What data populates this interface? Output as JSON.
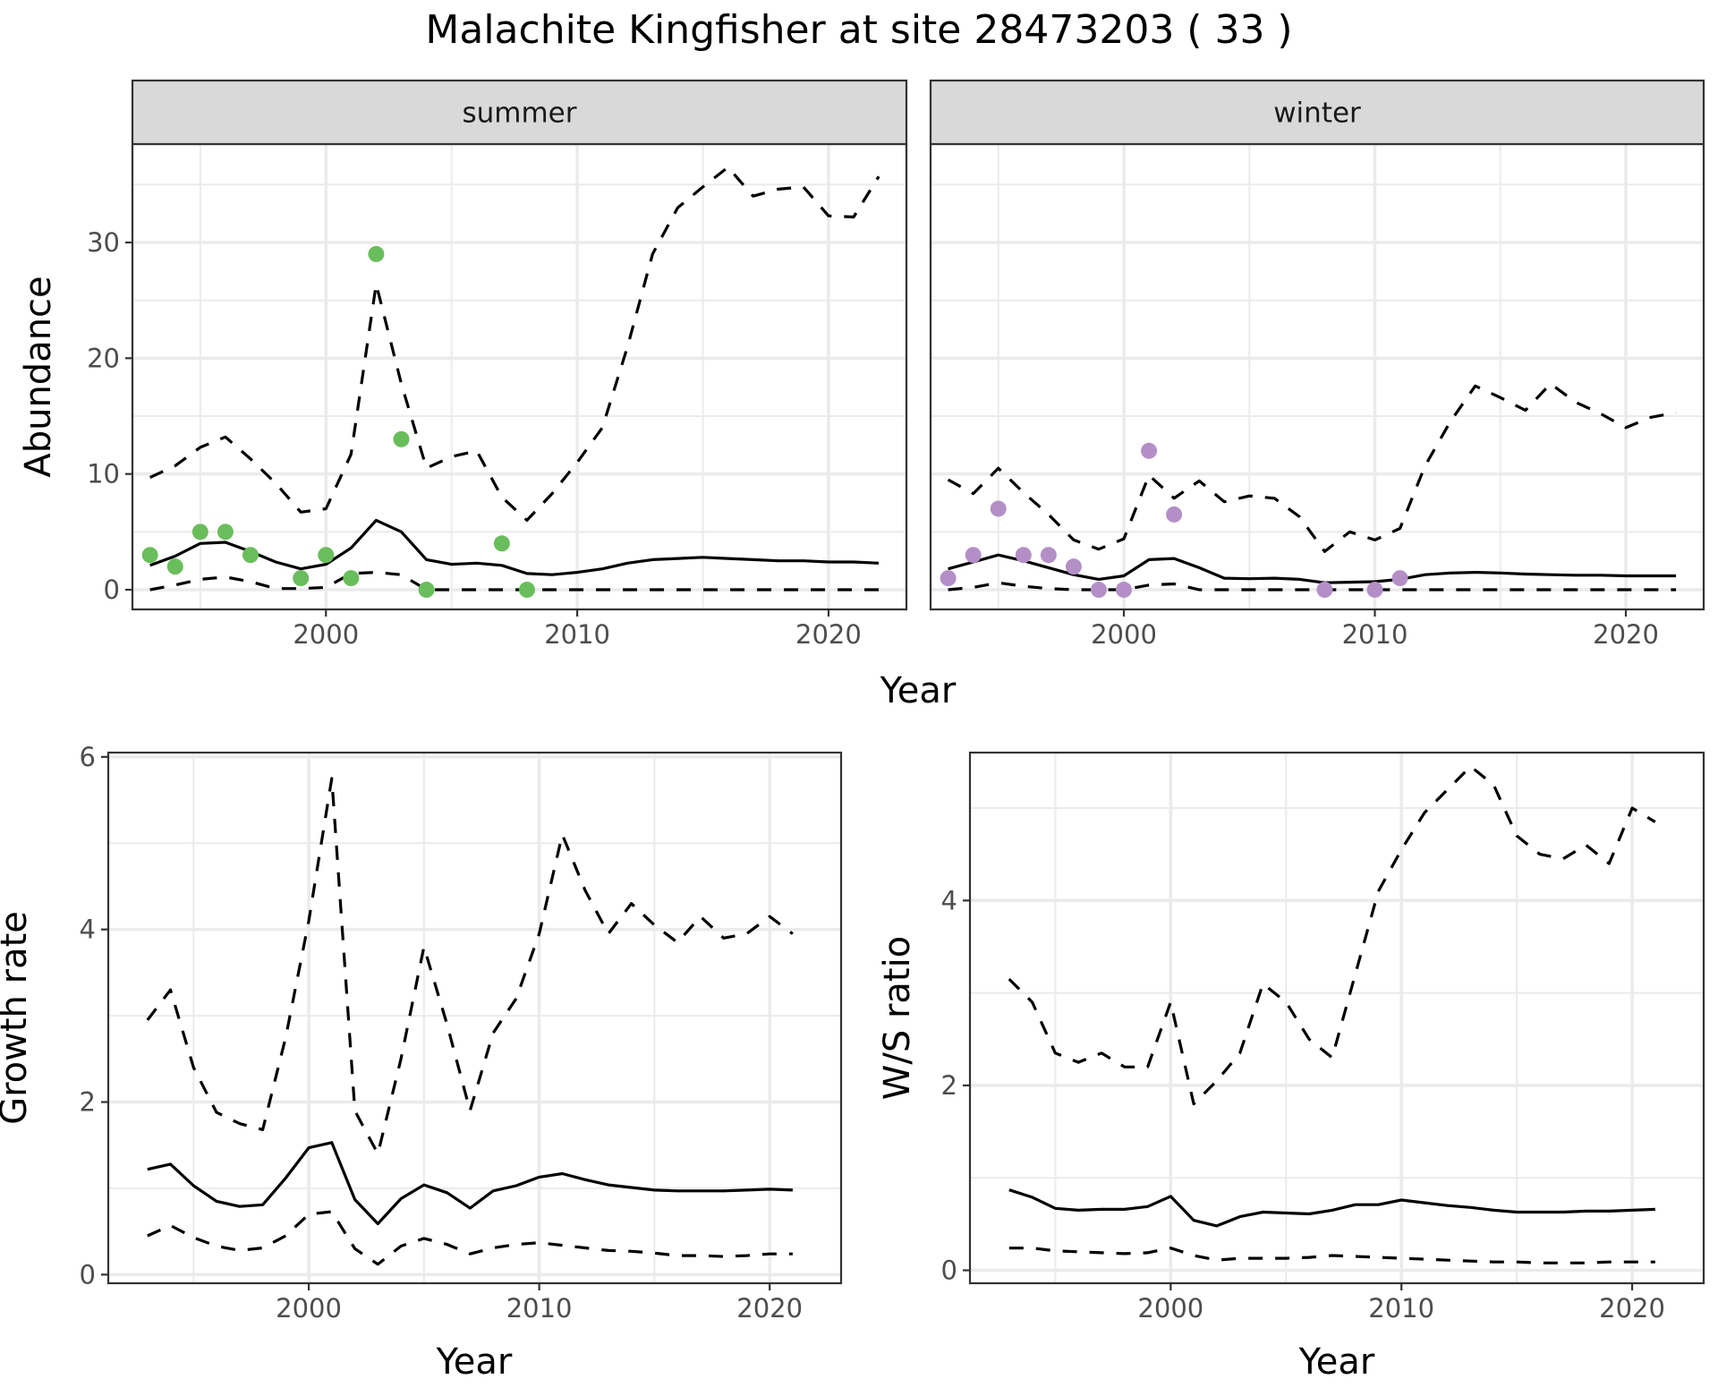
{
  "title": "Malachite Kingfisher at site 28473203 ( 33 )",
  "chart_data": [
    {
      "id": "abundance-summer",
      "type": "line",
      "facet": "summer",
      "xlabel": "Year",
      "ylabel": "Abundance",
      "xlim": [
        1992.3,
        2023.1
      ],
      "ylim": [
        -1.7,
        38.5
      ],
      "xticks": [
        2000,
        2010,
        2020
      ],
      "yticks": [
        0,
        10,
        20,
        30
      ],
      "grid": true,
      "series": [
        {
          "name": "fit",
          "style": "solid",
          "x": [
            1993,
            1994,
            1995,
            1996,
            1997,
            1998,
            1999,
            2000,
            2001,
            2002,
            2003,
            2004,
            2005,
            2006,
            2007,
            2008,
            2009,
            2010,
            2011,
            2012,
            2013,
            2014,
            2015,
            2016,
            2017,
            2018,
            2019,
            2020,
            2021,
            2022
          ],
          "y": [
            2.1,
            2.9,
            4.0,
            4.1,
            3.3,
            2.4,
            1.8,
            2.2,
            3.6,
            6.0,
            5.0,
            2.6,
            2.2,
            2.3,
            2.1,
            1.4,
            1.3,
            1.5,
            1.8,
            2.3,
            2.6,
            2.7,
            2.8,
            2.7,
            2.6,
            2.5,
            2.5,
            2.4,
            2.4,
            2.3
          ]
        },
        {
          "name": "upper",
          "style": "dashed",
          "x": [
            1993,
            1994,
            1995,
            1996,
            1997,
            1998,
            1999,
            2000,
            2001,
            2002,
            2003,
            2004,
            2005,
            2006,
            2007,
            2008,
            2009,
            2010,
            2011,
            2012,
            2013,
            2014,
            2015,
            2016,
            2017,
            2018,
            2019,
            2020,
            2021,
            2022
          ],
          "y": [
            9.7,
            10.7,
            12.3,
            13.2,
            11.3,
            9.2,
            6.7,
            7.0,
            11.7,
            26.4,
            17.8,
            10.5,
            11.5,
            12.0,
            8.0,
            6.0,
            8.3,
            11.0,
            14.0,
            21.0,
            29.0,
            33.0,
            34.8,
            36.5,
            34.0,
            34.6,
            34.8,
            32.3,
            32.2,
            35.7
          ]
        },
        {
          "name": "lower",
          "style": "dashed",
          "x": [
            1993,
            1994,
            1995,
            1996,
            1997,
            1998,
            1999,
            2000,
            2001,
            2002,
            2003,
            2004,
            2005,
            2006,
            2007,
            2008,
            2009,
            2010,
            2011,
            2012,
            2013,
            2014,
            2015,
            2016,
            2017,
            2018,
            2019,
            2020,
            2021,
            2022
          ],
          "y": [
            0,
            0.4,
            0.9,
            1.1,
            0.7,
            0.1,
            0.1,
            0.2,
            1.4,
            1.5,
            1.3,
            0,
            0,
            0,
            0,
            0,
            0,
            0,
            0,
            0,
            0,
            0,
            0,
            0,
            0,
            0,
            0,
            0,
            0,
            0
          ]
        },
        {
          "name": "observed",
          "style": "points",
          "color": "#6abd5c",
          "x": [
            1993,
            1994,
            1995,
            1996,
            1997,
            1999,
            2000,
            2001,
            2002,
            2003,
            2004,
            2007,
            2008
          ],
          "y": [
            3,
            2,
            5,
            5,
            3,
            1,
            3,
            1,
            29,
            13,
            0,
            4,
            0
          ]
        }
      ]
    },
    {
      "id": "abundance-winter",
      "type": "line",
      "facet": "winter",
      "xlabel": "Year",
      "ylabel": "Abundance",
      "xlim": [
        1992.3,
        2023.1
      ],
      "ylim": [
        -1.7,
        38.5
      ],
      "xticks": [
        2000,
        2010,
        2020
      ],
      "yticks": [
        0,
        10,
        20,
        30
      ],
      "grid": true,
      "series": [
        {
          "name": "fit",
          "style": "solid",
          "x": [
            1993,
            1994,
            1995,
            1996,
            1997,
            1998,
            1999,
            2000,
            2001,
            2002,
            2003,
            2004,
            2005,
            2006,
            2007,
            2008,
            2009,
            2010,
            2011,
            2012,
            2013,
            2014,
            2015,
            2016,
            2017,
            2018,
            2019,
            2020,
            2021,
            2022
          ],
          "y": [
            1.8,
            2.4,
            3.0,
            2.5,
            1.9,
            1.3,
            0.9,
            1.2,
            2.6,
            2.7,
            1.9,
            1.0,
            0.95,
            1.0,
            0.9,
            0.6,
            0.65,
            0.7,
            0.9,
            1.3,
            1.45,
            1.5,
            1.45,
            1.35,
            1.3,
            1.25,
            1.25,
            1.2,
            1.2,
            1.2
          ]
        },
        {
          "name": "upper",
          "style": "dashed",
          "x": [
            1993,
            1994,
            1995,
            1996,
            1997,
            1998,
            1999,
            2000,
            2001,
            2002,
            2003,
            2004,
            2005,
            2006,
            2007,
            2008,
            2009,
            2010,
            2011,
            2012,
            2013,
            2014,
            2015,
            2016,
            2017,
            2018,
            2019,
            2020,
            2021,
            2022
          ],
          "y": [
            9.5,
            8.3,
            10.5,
            8.4,
            6.5,
            4.3,
            3.5,
            4.4,
            9.9,
            7.9,
            9.4,
            7.6,
            8.1,
            7.9,
            6.3,
            3.3,
            5.0,
            4.3,
            5.3,
            10.7,
            14.5,
            17.6,
            16.6,
            15.5,
            17.8,
            16.2,
            15.2,
            14.0,
            14.9,
            15.3
          ]
        },
        {
          "name": "lower",
          "style": "dashed",
          "x": [
            1993,
            1994,
            1995,
            1996,
            1997,
            1998,
            1999,
            2000,
            2001,
            2002,
            2003,
            2004,
            2005,
            2006,
            2007,
            2008,
            2009,
            2010,
            2011,
            2012,
            2013,
            2014,
            2015,
            2016,
            2017,
            2018,
            2019,
            2020,
            2021,
            2022
          ],
          "y": [
            0,
            0.2,
            0.6,
            0.3,
            0.1,
            0,
            0,
            0,
            0.4,
            0.5,
            0,
            0,
            0,
            0,
            0,
            0,
            0,
            0,
            0,
            0,
            0,
            0,
            0,
            0,
            0,
            0,
            0,
            0,
            0,
            0
          ]
        },
        {
          "name": "observed",
          "style": "points",
          "color": "#b48fc7",
          "x": [
            1993,
            1994,
            1995,
            1996,
            1997,
            1998,
            1999,
            2000,
            2001,
            2002,
            2008,
            2010,
            2011
          ],
          "y": [
            1,
            3,
            7,
            3,
            3,
            2,
            0,
            0,
            12,
            6.5,
            0,
            0,
            1
          ]
        }
      ]
    },
    {
      "id": "growth-rate",
      "type": "line",
      "xlabel": "Year",
      "ylabel": "Growth rate",
      "xlim": [
        1991.3,
        2023.1
      ],
      "ylim": [
        -0.1,
        6.05
      ],
      "xticks": [
        2000,
        2010,
        2020
      ],
      "yticks": [
        0,
        2,
        4,
        6
      ],
      "grid": true,
      "series": [
        {
          "name": "fit",
          "style": "solid",
          "x": [
            1993,
            1994,
            1995,
            1996,
            1997,
            1998,
            1999,
            2000,
            2001,
            2002,
            2003,
            2004,
            2005,
            2006,
            2007,
            2008,
            2009,
            2010,
            2011,
            2012,
            2013,
            2014,
            2015,
            2016,
            2017,
            2018,
            2019,
            2020,
            2021
          ],
          "y": [
            1.22,
            1.28,
            1.03,
            0.85,
            0.79,
            0.81,
            1.12,
            1.47,
            1.53,
            0.87,
            0.59,
            0.88,
            1.04,
            0.95,
            0.77,
            0.97,
            1.03,
            1.13,
            1.17,
            1.1,
            1.04,
            1.01,
            0.98,
            0.97,
            0.97,
            0.97,
            0.98,
            0.99,
            0.98
          ]
        },
        {
          "name": "upper",
          "style": "dashed",
          "x": [
            1993,
            1994,
            1995,
            1996,
            1997,
            1998,
            1999,
            2000,
            2001,
            2002,
            2003,
            2004,
            2005,
            2006,
            2007,
            2008,
            2009,
            2010,
            2011,
            2012,
            2013,
            2014,
            2015,
            2016,
            2017,
            2018,
            2019,
            2020,
            2021
          ],
          "y": [
            2.95,
            3.3,
            2.4,
            1.88,
            1.75,
            1.68,
            2.75,
            4.1,
            5.75,
            1.9,
            1.4,
            2.5,
            3.8,
            2.9,
            1.9,
            2.8,
            3.2,
            3.95,
            5.1,
            4.45,
            3.95,
            4.3,
            4.05,
            3.85,
            4.15,
            3.9,
            3.95,
            4.15,
            3.95
          ]
        },
        {
          "name": "lower",
          "style": "dashed",
          "x": [
            1993,
            1994,
            1995,
            1996,
            1997,
            1998,
            1999,
            2000,
            2001,
            2002,
            2003,
            2004,
            2005,
            2006,
            2007,
            2008,
            2009,
            2010,
            2011,
            2012,
            2013,
            2014,
            2015,
            2016,
            2017,
            2018,
            2019,
            2020,
            2021
          ],
          "y": [
            0.45,
            0.57,
            0.43,
            0.33,
            0.28,
            0.31,
            0.45,
            0.7,
            0.73,
            0.3,
            0.12,
            0.33,
            0.42,
            0.35,
            0.24,
            0.31,
            0.35,
            0.37,
            0.34,
            0.31,
            0.28,
            0.27,
            0.25,
            0.22,
            0.22,
            0.21,
            0.22,
            0.24,
            0.24
          ]
        }
      ]
    },
    {
      "id": "ws-ratio",
      "type": "line",
      "xlabel": "Year",
      "ylabel": "W/S ratio",
      "xlim": [
        1991.3,
        2023.1
      ],
      "ylim": [
        -0.14,
        5.6
      ],
      "xticks": [
        2000,
        2010,
        2020
      ],
      "yticks": [
        0,
        2,
        4
      ],
      "grid": true,
      "series": [
        {
          "name": "fit",
          "style": "solid",
          "x": [
            1993,
            1994,
            1995,
            1996,
            1997,
            1998,
            1999,
            2000,
            2001,
            2002,
            2003,
            2004,
            2005,
            2006,
            2007,
            2008,
            2009,
            2010,
            2011,
            2012,
            2013,
            2014,
            2015,
            2016,
            2017,
            2018,
            2019,
            2020,
            2021
          ],
          "y": [
            0.87,
            0.79,
            0.67,
            0.65,
            0.66,
            0.66,
            0.69,
            0.8,
            0.54,
            0.48,
            0.58,
            0.63,
            0.62,
            0.61,
            0.65,
            0.71,
            0.71,
            0.76,
            0.73,
            0.7,
            0.68,
            0.65,
            0.63,
            0.63,
            0.63,
            0.64,
            0.64,
            0.65,
            0.66
          ]
        },
        {
          "name": "upper",
          "style": "dashed",
          "x": [
            1993,
            1994,
            1995,
            1996,
            1997,
            1998,
            1999,
            2000,
            2001,
            2002,
            2003,
            2004,
            2005,
            2006,
            2007,
            2008,
            2009,
            2010,
            2011,
            2012,
            2013,
            2014,
            2015,
            2016,
            2017,
            2018,
            2019,
            2020,
            2021
          ],
          "y": [
            3.15,
            2.9,
            2.35,
            2.25,
            2.35,
            2.2,
            2.2,
            2.9,
            1.8,
            2.05,
            2.35,
            3.1,
            2.9,
            2.5,
            2.3,
            3.2,
            4.1,
            4.55,
            4.95,
            5.2,
            5.45,
            5.25,
            4.7,
            4.5,
            4.45,
            4.6,
            4.4,
            5.0,
            4.85
          ]
        },
        {
          "name": "lower",
          "style": "dashed",
          "x": [
            1993,
            1994,
            1995,
            1996,
            1997,
            1998,
            1999,
            2000,
            2001,
            2002,
            2003,
            2004,
            2005,
            2006,
            2007,
            2008,
            2009,
            2010,
            2011,
            2012,
            2013,
            2014,
            2015,
            2016,
            2017,
            2018,
            2019,
            2020,
            2021
          ],
          "y": [
            0.24,
            0.24,
            0.21,
            0.2,
            0.19,
            0.18,
            0.19,
            0.24,
            0.16,
            0.11,
            0.13,
            0.13,
            0.13,
            0.14,
            0.16,
            0.15,
            0.14,
            0.13,
            0.12,
            0.11,
            0.1,
            0.09,
            0.09,
            0.08,
            0.08,
            0.08,
            0.09,
            0.09,
            0.09
          ]
        }
      ]
    }
  ]
}
